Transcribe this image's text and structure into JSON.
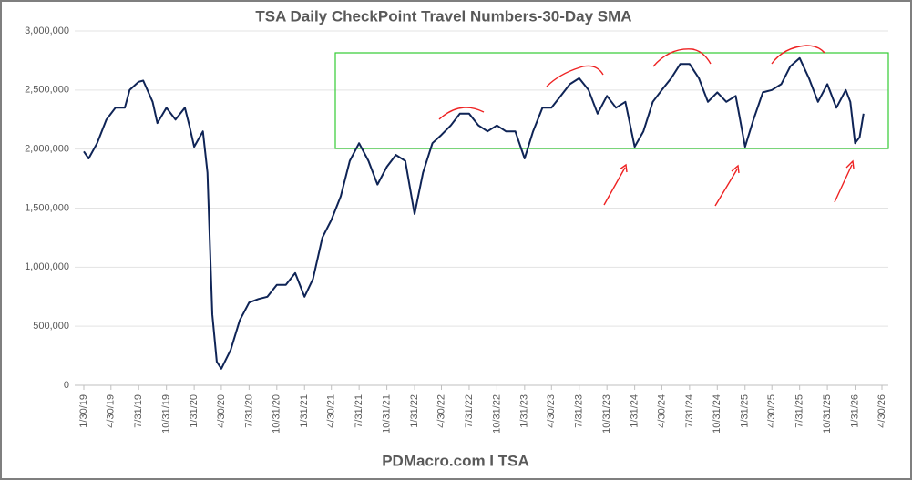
{
  "chart_data": {
    "type": "line",
    "title": "TSA Daily CheckPoint Travel Numbers-30-Day SMA",
    "source": "PDMacro.com I TSA",
    "x": [
      "1/30/19",
      "2/15/19",
      "3/15/19",
      "4/15/19",
      "5/15/19",
      "6/15/19",
      "7/1/19",
      "7/31/19",
      "8/15/19",
      "9/15/19",
      "10/1/19",
      "10/31/19",
      "11/30/19",
      "12/31/19",
      "1/15/20",
      "1/31/20",
      "2/29/20",
      "3/15/20",
      "3/31/20",
      "4/15/20",
      "4/30/20",
      "5/31/20",
      "6/30/20",
      "7/31/20",
      "8/31/20",
      "9/30/20",
      "10/31/20",
      "11/30/20",
      "12/31/20",
      "1/31/21",
      "2/28/21",
      "3/31/21",
      "4/30/21",
      "5/31/21",
      "6/30/21",
      "7/31/21",
      "8/31/21",
      "9/30/21",
      "10/31/21",
      "11/30/21",
      "12/31/21",
      "1/31/22",
      "2/28/22",
      "3/31/22",
      "4/30/22",
      "5/31/22",
      "6/30/22",
      "7/31/22",
      "8/31/22",
      "9/30/22",
      "10/31/22",
      "11/30/22",
      "12/31/22",
      "1/31/23",
      "2/28/23",
      "3/31/23",
      "4/30/23",
      "5/31/23",
      "6/30/23",
      "7/31/23",
      "8/31/23",
      "9/30/23",
      "10/31/23",
      "11/30/23",
      "12/31/23",
      "1/31/24",
      "2/29/24",
      "3/31/24",
      "4/30/24",
      "5/31/24",
      "6/30/24",
      "7/31/24",
      "8/31/24",
      "9/30/24",
      "10/31/24",
      "11/30/24",
      "12/31/24",
      "1/31/25",
      "2/28/25",
      "3/31/25",
      "4/30/25",
      "5/31/25",
      "6/30/25",
      "7/31/25",
      "8/31/25",
      "9/30/25",
      "10/31/25",
      "11/30/25",
      "12/31/25",
      "1/15/26",
      "1/31/26",
      "2/15/26",
      "2/28/26"
    ],
    "series": [
      {
        "name": "30-Day SMA",
        "color": "#0f2456",
        "values": [
          1980000,
          1920000,
          2050000,
          2250000,
          2350000,
          2350000,
          2500000,
          2570000,
          2580000,
          2400000,
          2220000,
          2350000,
          2250000,
          2350000,
          2200000,
          2020000,
          2150000,
          1800000,
          600000,
          200000,
          140000,
          300000,
          550000,
          700000,
          730000,
          750000,
          850000,
          850000,
          950000,
          750000,
          900000,
          1250000,
          1400000,
          1600000,
          1900000,
          2050000,
          1900000,
          1700000,
          1850000,
          1950000,
          1900000,
          1450000,
          1800000,
          2050000,
          2120000,
          2200000,
          2300000,
          2300000,
          2200000,
          2150000,
          2200000,
          2150000,
          2150000,
          1920000,
          2150000,
          2350000,
          2350000,
          2450000,
          2550000,
          2600000,
          2500000,
          2300000,
          2450000,
          2350000,
          2400000,
          2020000,
          2150000,
          2400000,
          2500000,
          2600000,
          2720000,
          2720000,
          2600000,
          2400000,
          2480000,
          2400000,
          2450000,
          2020000,
          2250000,
          2480000,
          2500000,
          2550000,
          2700000,
          2770000,
          2600000,
          2400000,
          2550000,
          2350000,
          2500000,
          2400000,
          2050000,
          2100000,
          2300000
        ]
      }
    ],
    "xlim": [
      "1/30/19",
      "4/30/26"
    ],
    "xticks": [
      "1/30/19",
      "4/30/19",
      "7/31/19",
      "10/31/19",
      "1/31/20",
      "4/30/20",
      "7/31/20",
      "10/31/20",
      "1/31/21",
      "4/30/21",
      "7/31/21",
      "10/31/21",
      "1/31/22",
      "4/30/22",
      "7/31/22",
      "10/31/22",
      "1/31/23",
      "4/30/23",
      "7/31/23",
      "10/31/23",
      "1/31/24",
      "4/30/24",
      "7/31/24",
      "10/31/24",
      "1/31/25",
      "4/30/25",
      "7/31/25",
      "10/31/25",
      "1/31/26",
      "4/30/26"
    ],
    "ylim": [
      0,
      3000000
    ],
    "yticks": [
      0,
      {
        "value": 500000,
        "label": "500,000"
      },
      {
        "value": 1000000,
        "label": "1,000,000"
      },
      {
        "value": 1500000,
        "label": "1,500,000"
      },
      {
        "value": 2000000,
        "label": "2,000,000"
      },
      {
        "value": 2500000,
        "label": "2,500,000"
      },
      {
        "value": 3000000,
        "label": "3,000,000"
      }
    ],
    "grid": true
  }
}
